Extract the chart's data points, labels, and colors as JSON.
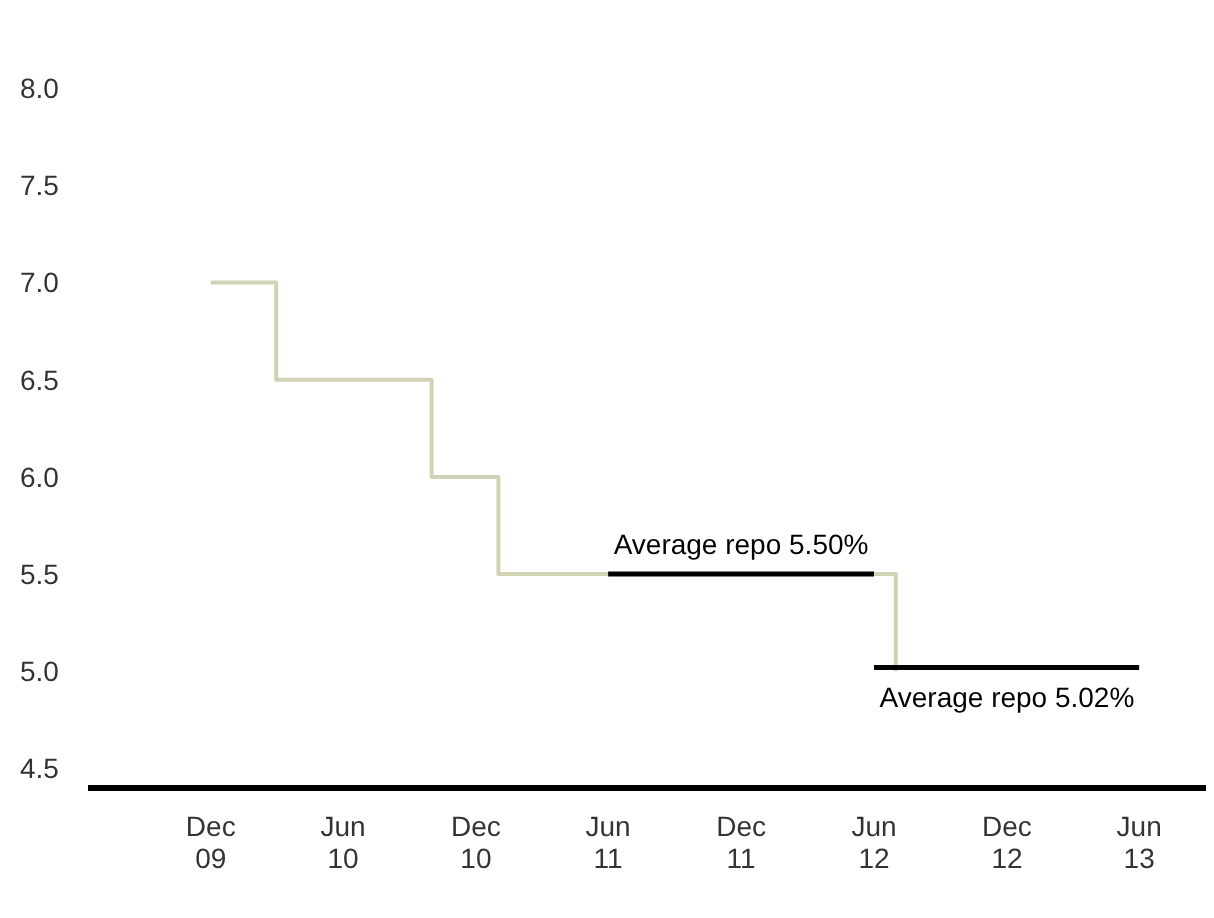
{
  "chart_data": {
    "type": "step",
    "series": [
      {
        "color": "#d2d2b4",
        "x": [
          "2009-12",
          "2010-03",
          "2010-10",
          "2011-01",
          "2012-07"
        ],
        "values": [
          7.0,
          6.5,
          6.0,
          5.5,
          5.0
        ]
      },
      {
        "type": "line",
        "color": "#000000",
        "x": [
          "2011-06",
          "2012-06"
        ],
        "values": [
          5.5,
          5.5
        ]
      },
      {
        "type": "line",
        "color": "#000000",
        "x": [
          "2012-06",
          "2013-06"
        ],
        "values": [
          5.02,
          5.02
        ]
      }
    ],
    "annotations": [
      {
        "text": "Average repo 5.50%",
        "x": "2011-12",
        "y": 5.5
      },
      {
        "text": "Average repo 5.02%",
        "x": "2012-12",
        "y": 5.02
      }
    ],
    "xlim": [
      "2009-06-15",
      "2013-09-01"
    ],
    "xticks": [
      {
        "value": "2009-12",
        "label": "Dec 09"
      },
      {
        "value": "2010-06",
        "label": "Jun 10"
      },
      {
        "value": "2010-12",
        "label": "Dec 10"
      },
      {
        "value": "2011-06",
        "label": "Jun 11"
      },
      {
        "value": "2011-12",
        "label": "Dec 11"
      },
      {
        "value": "2012-06",
        "label": "Jun 12"
      },
      {
        "value": "2012-12",
        "label": "Dec 12"
      },
      {
        "value": "2013-06",
        "label": "Jun 13"
      }
    ],
    "ylim": [
      4.4,
      8.0
    ],
    "yticks": [
      {
        "value": 4.5,
        "label": "4.5"
      },
      {
        "value": 5.0,
        "label": "5.0"
      },
      {
        "value": 5.5,
        "label": "5.5"
      },
      {
        "value": 6.0,
        "label": "6.0"
      },
      {
        "value": 6.5,
        "label": "6.5"
      },
      {
        "value": 7.0,
        "label": "7.0"
      },
      {
        "value": 7.5,
        "label": "7.5"
      },
      {
        "value": 8.0,
        "label": "8.0"
      }
    ],
    "grid": false,
    "legend": false,
    "marker": "none",
    "line_style": "solid"
  }
}
